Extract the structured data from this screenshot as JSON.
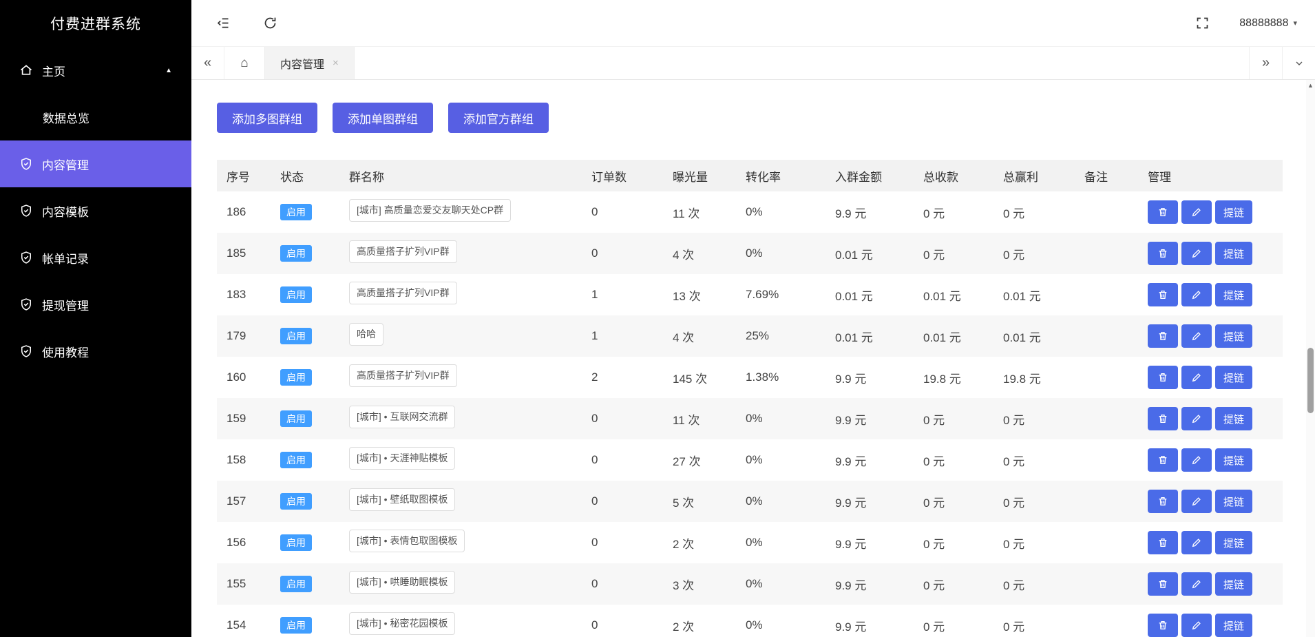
{
  "colors": {
    "primary": "#575fe3",
    "sidebar_active": "#6a5fe8",
    "action": "#4a6be8",
    "badge": "#409eff",
    "sidebar_bg": "#000000"
  },
  "sidebar": {
    "title": "付费进群系统",
    "items": [
      {
        "label": "主页",
        "icon": "home-icon",
        "type": "parent",
        "expanded": true
      },
      {
        "label": "数据总览",
        "type": "sub"
      },
      {
        "label": "内容管理",
        "icon": "shield-check-icon",
        "active": true
      },
      {
        "label": "内容模板",
        "icon": "shield-check-icon"
      },
      {
        "label": "帐单记录",
        "icon": "shield-check-icon"
      },
      {
        "label": "提现管理",
        "icon": "shield-check-icon"
      },
      {
        "label": "使用教程",
        "icon": "shield-check-icon"
      }
    ]
  },
  "header": {
    "username": "88888888"
  },
  "tabbar": {
    "tabs": [
      {
        "label": "内容管理",
        "closable": true,
        "active": true
      }
    ]
  },
  "toolbar": {
    "buttons": [
      {
        "label": "添加多图群组"
      },
      {
        "label": "添加单图群组"
      },
      {
        "label": "添加官方群组"
      }
    ]
  },
  "table": {
    "headers": [
      "序号",
      "状态",
      "群名称",
      "订单数",
      "曝光量",
      "转化率",
      "入群金额",
      "总收款",
      "总赢利",
      "备注",
      "管理"
    ],
    "action_labels": {
      "link": "提链"
    },
    "rows": [
      {
        "id": "186",
        "status": "启用",
        "name": "[城市] 高质量恋爱交友聊天处CP群",
        "orders": "0",
        "exposure": "11 次",
        "conversion": "0%",
        "amount": "9.9 元",
        "received": "0 元",
        "profit": "0 元",
        "note": ""
      },
      {
        "id": "185",
        "status": "启用",
        "name": "高质量搭子扩列VIP群",
        "orders": "0",
        "exposure": "4 次",
        "conversion": "0%",
        "amount": "0.01 元",
        "received": "0 元",
        "profit": "0 元",
        "note": ""
      },
      {
        "id": "183",
        "status": "启用",
        "name": "高质量搭子扩列VIP群",
        "orders": "1",
        "exposure": "13 次",
        "conversion": "7.69%",
        "amount": "0.01 元",
        "received": "0.01 元",
        "profit": "0.01 元",
        "note": ""
      },
      {
        "id": "179",
        "status": "启用",
        "name": "哈哈",
        "orders": "1",
        "exposure": "4 次",
        "conversion": "25%",
        "amount": "0.01 元",
        "received": "0.01 元",
        "profit": "0.01 元",
        "note": ""
      },
      {
        "id": "160",
        "status": "启用",
        "name": "高质量搭子扩列VIP群",
        "orders": "2",
        "exposure": "145 次",
        "conversion": "1.38%",
        "amount": "9.9 元",
        "received": "19.8 元",
        "profit": "19.8 元",
        "note": ""
      },
      {
        "id": "159",
        "status": "启用",
        "name": "[城市] • 互联网交流群",
        "orders": "0",
        "exposure": "11 次",
        "conversion": "0%",
        "amount": "9.9 元",
        "received": "0 元",
        "profit": "0 元",
        "note": ""
      },
      {
        "id": "158",
        "status": "启用",
        "name": "[城市] • 天涯神贴模板",
        "orders": "0",
        "exposure": "27 次",
        "conversion": "0%",
        "amount": "9.9 元",
        "received": "0 元",
        "profit": "0 元",
        "note": ""
      },
      {
        "id": "157",
        "status": "启用",
        "name": "[城市] • 壁纸取图模板",
        "orders": "0",
        "exposure": "5 次",
        "conversion": "0%",
        "amount": "9.9 元",
        "received": "0 元",
        "profit": "0 元",
        "note": ""
      },
      {
        "id": "156",
        "status": "启用",
        "name": "[城市] • 表情包取图模板",
        "orders": "0",
        "exposure": "2 次",
        "conversion": "0%",
        "amount": "9.9 元",
        "received": "0 元",
        "profit": "0 元",
        "note": ""
      },
      {
        "id": "155",
        "status": "启用",
        "name": "[城市] • 哄睡助眠模板",
        "orders": "0",
        "exposure": "3 次",
        "conversion": "0%",
        "amount": "9.9 元",
        "received": "0 元",
        "profit": "0 元",
        "note": ""
      },
      {
        "id": "154",
        "status": "启用",
        "name": "[城市] • 秘密花园模板",
        "orders": "0",
        "exposure": "2 次",
        "conversion": "0%",
        "amount": "9.9 元",
        "received": "0 元",
        "profit": "0 元",
        "note": ""
      }
    ]
  }
}
